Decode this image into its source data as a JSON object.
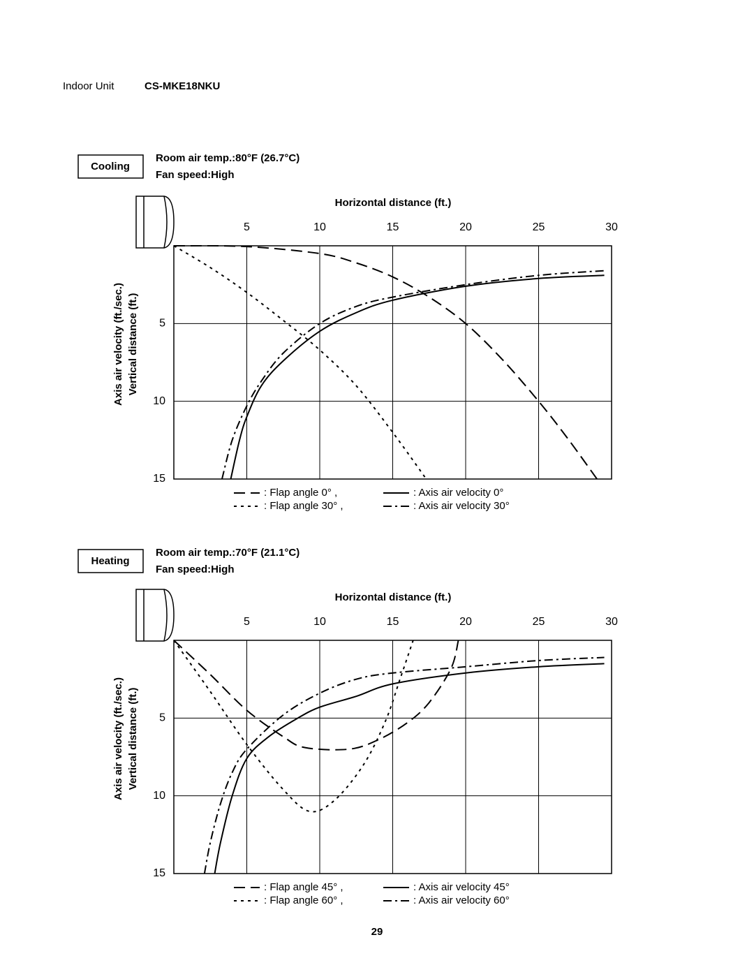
{
  "header": {
    "label": "Indoor Unit",
    "model": "CS-MKE18NKU"
  },
  "page_number": "29",
  "chart_data": [
    {
      "type": "line",
      "title": "Cooling",
      "subtitle": [
        "Room air temp.:80°F (26.7°C)",
        "Fan speed:High"
      ],
      "xlabel": "Horizontal distance (ft.)",
      "ylabel": [
        "Axis air velocity (ft./sec.)",
        "Vertical distance (ft.)"
      ],
      "xlim": [
        0,
        30
      ],
      "xticks": [
        5,
        10,
        15,
        20,
        25,
        30
      ],
      "ylim": [
        0,
        15
      ],
      "yticks": [
        5,
        10,
        15
      ],
      "y_inverted": true,
      "grid": true,
      "series": [
        {
          "name": ": Flap angle 0°  ,",
          "color": "#000",
          "dash": "long",
          "x": [
            0,
            5,
            10,
            12.5,
            15,
            17.5,
            20,
            22.5,
            25,
            27,
            29
          ],
          "values": [
            0,
            0.05,
            0.5,
            1.1,
            2,
            3.3,
            5,
            7.3,
            10,
            12.4,
            15
          ]
        },
        {
          "name": ": Flap angle 30° ,",
          "color": "#000",
          "dash": "short",
          "x": [
            0,
            2.5,
            5,
            7.5,
            10,
            12.5,
            15,
            17.3
          ],
          "values": [
            0,
            1.4,
            3,
            4.8,
            6.7,
            9,
            12,
            15
          ]
        },
        {
          "name": ": Axis air velocity 0°",
          "color": "#000",
          "dash": "solid",
          "x": [
            3.9,
            4.5,
            5,
            6,
            7.5,
            10,
            12.5,
            15,
            20,
            25,
            29.5
          ],
          "values": [
            15,
            12.5,
            11,
            9,
            7.4,
            5.5,
            4.3,
            3.5,
            2.6,
            2.1,
            1.9
          ]
        },
        {
          "name": ": Axis air velocity 30°",
          "color": "#000",
          "dash": "dashdot",
          "x": [
            3.3,
            4,
            5,
            6,
            7.5,
            10,
            12.5,
            15,
            20,
            25,
            29.5
          ],
          "values": [
            15,
            12.5,
            10.3,
            8.7,
            6.9,
            5,
            3.9,
            3.3,
            2.5,
            1.9,
            1.6
          ]
        }
      ]
    },
    {
      "type": "line",
      "title": "Heating",
      "subtitle": [
        "Room air temp.:70°F (21.1°C)",
        "Fan speed:High"
      ],
      "xlabel": "Horizontal distance (ft.)",
      "ylabel": [
        "Axis air velocity (ft./sec.)",
        "Vertical distance (ft.)"
      ],
      "xlim": [
        0,
        30
      ],
      "xticks": [
        5,
        10,
        15,
        20,
        25,
        30
      ],
      "ylim": [
        0,
        15
      ],
      "yticks": [
        5,
        10,
        15
      ],
      "y_inverted": true,
      "grid": true,
      "series": [
        {
          "name": ": Flap angle 45°  ,",
          "color": "#000",
          "dash": "long",
          "x": [
            0,
            2.5,
            5,
            7.5,
            9,
            12,
            14,
            16,
            17.5,
            19,
            19.5
          ],
          "values": [
            0,
            2.2,
            4.5,
            6.2,
            6.9,
            7,
            6.4,
            5.3,
            4,
            1.8,
            0
          ]
        },
        {
          "name": ": Flap angle 60°  ,",
          "color": "#000",
          "dash": "short",
          "x": [
            0,
            2.5,
            5,
            7.5,
            9.3,
            11,
            13,
            14.5,
            15.5,
            16.4
          ],
          "values": [
            0,
            3.3,
            6.7,
            9.6,
            11,
            10.3,
            8,
            5.2,
            2.5,
            0
          ]
        },
        {
          "name": ": Axis air velocity 45°",
          "color": "#000",
          "dash": "solid",
          "x": [
            2.8,
            3.2,
            4,
            5,
            6.5,
            8.5,
            10,
            12.5,
            15,
            20,
            25,
            29.5
          ],
          "values": [
            15,
            13,
            10,
            7.6,
            6.2,
            5,
            4.3,
            3.6,
            2.8,
            2.1,
            1.7,
            1.5
          ]
        },
        {
          "name": ": Axis air velocity 60°",
          "color": "#000",
          "dash": "dashdot",
          "x": [
            2.1,
            2.5,
            3.2,
            4,
            5,
            7.5,
            10,
            12.5,
            15,
            20,
            25,
            29.5
          ],
          "values": [
            15,
            13,
            10.5,
            8.5,
            7,
            4.8,
            3.4,
            2.5,
            2.1,
            1.7,
            1.3,
            1.1
          ]
        }
      ]
    }
  ]
}
